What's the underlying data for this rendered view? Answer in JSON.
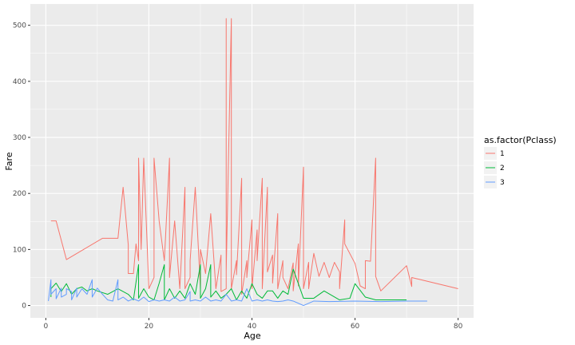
{
  "chart_data": {
    "type": "line",
    "title": "",
    "xlabel": "Age",
    "ylabel": "Fare",
    "xlim": [
      -3,
      83
    ],
    "ylim": [
      -22,
      538
    ],
    "x_ticks": [
      0,
      20,
      40,
      60,
      80
    ],
    "y_ticks": [
      0,
      100,
      200,
      300,
      400,
      500
    ],
    "grid": true,
    "background": "#ebebeb",
    "legend": {
      "title": "as.factor(Pclass)",
      "position": "right"
    },
    "series": [
      {
        "name": "1",
        "color": "#f8766d",
        "points": [
          [
            1,
            151
          ],
          [
            2,
            151
          ],
          [
            4,
            82
          ],
          [
            11,
            120
          ],
          [
            14,
            120
          ],
          [
            15,
            211
          ],
          [
            16,
            108
          ],
          [
            16,
            57
          ],
          [
            17,
            57
          ],
          [
            17.5,
            110
          ],
          [
            18,
            80
          ],
          [
            18,
            263
          ],
          [
            18.5,
            100
          ],
          [
            19,
            263
          ],
          [
            20,
            30
          ],
          [
            21,
            50
          ],
          [
            21,
            263
          ],
          [
            22,
            150
          ],
          [
            23,
            80
          ],
          [
            24,
            263
          ],
          [
            24,
            50
          ],
          [
            25,
            151
          ],
          [
            26,
            30
          ],
          [
            27,
            211
          ],
          [
            27,
            30
          ],
          [
            28,
            50
          ],
          [
            28,
            80
          ],
          [
            29,
            211
          ],
          [
            30,
            30
          ],
          [
            30,
            100
          ],
          [
            31,
            57
          ],
          [
            32,
            164
          ],
          [
            33,
            30
          ],
          [
            34,
            90
          ],
          [
            34,
            25
          ],
          [
            35,
            30
          ],
          [
            35,
            512
          ],
          [
            35,
            60
          ],
          [
            36,
            512
          ],
          [
            36,
            30
          ],
          [
            37,
            80
          ],
          [
            37,
            55
          ],
          [
            38,
            227
          ],
          [
            38,
            20
          ],
          [
            39,
            80
          ],
          [
            39,
            50
          ],
          [
            40,
            153
          ],
          [
            40,
            30
          ],
          [
            41,
            135
          ],
          [
            41,
            80
          ],
          [
            42,
            227
          ],
          [
            42,
            30
          ],
          [
            43,
            211
          ],
          [
            43,
            60
          ],
          [
            44,
            90
          ],
          [
            44,
            40
          ],
          [
            45,
            164
          ],
          [
            45,
            30
          ],
          [
            46,
            80
          ],
          [
            46,
            50
          ],
          [
            47,
            30
          ],
          [
            48,
            76
          ],
          [
            48,
            26
          ],
          [
            49,
            110
          ],
          [
            49,
            35
          ],
          [
            50,
            247
          ],
          [
            50,
            30
          ],
          [
            51,
            77
          ],
          [
            51,
            30
          ],
          [
            52,
            93
          ],
          [
            53,
            52
          ],
          [
            54,
            77
          ],
          [
            55,
            50
          ],
          [
            56,
            77
          ],
          [
            57,
            60
          ],
          [
            57,
            30
          ],
          [
            58,
            153
          ],
          [
            58,
            110
          ],
          [
            60,
            75
          ],
          [
            61,
            35
          ],
          [
            62,
            30
          ],
          [
            62,
            80
          ],
          [
            63,
            79
          ],
          [
            64,
            263
          ],
          [
            64,
            52
          ],
          [
            65,
            26
          ],
          [
            70,
            71
          ],
          [
            71,
            34
          ],
          [
            71,
            50
          ],
          [
            80,
            30
          ]
        ]
      },
      {
        "name": "2",
        "color": "#00ba38",
        "points": [
          [
            1,
            15
          ],
          [
            1,
            30
          ],
          [
            2,
            40
          ],
          [
            3,
            25
          ],
          [
            4,
            39
          ],
          [
            5,
            20
          ],
          [
            6,
            30
          ],
          [
            7,
            33
          ],
          [
            8,
            26
          ],
          [
            9,
            30
          ],
          [
            10,
            26
          ],
          [
            12,
            20
          ],
          [
            14,
            30
          ],
          [
            15,
            25
          ],
          [
            16,
            20
          ],
          [
            17,
            10
          ],
          [
            18,
            73
          ],
          [
            18,
            13
          ],
          [
            19,
            30
          ],
          [
            20,
            15
          ],
          [
            21,
            10
          ],
          [
            22,
            40
          ],
          [
            23,
            73
          ],
          [
            23,
            10
          ],
          [
            24,
            30
          ],
          [
            25,
            13
          ],
          [
            26,
            26
          ],
          [
            27,
            13
          ],
          [
            28,
            39
          ],
          [
            29,
            20
          ],
          [
            30,
            73
          ],
          [
            30,
            13
          ],
          [
            31,
            30
          ],
          [
            32,
            73
          ],
          [
            32,
            15
          ],
          [
            33,
            26
          ],
          [
            34,
            13
          ],
          [
            35,
            20
          ],
          [
            36,
            30
          ],
          [
            37,
            10
          ],
          [
            38,
            26
          ],
          [
            39,
            13
          ],
          [
            40,
            39
          ],
          [
            41,
            20
          ],
          [
            42,
            13
          ],
          [
            43,
            26
          ],
          [
            44,
            26
          ],
          [
            45,
            13
          ],
          [
            46,
            26
          ],
          [
            47,
            20
          ],
          [
            48,
            65
          ],
          [
            50,
            13
          ],
          [
            52,
            13
          ],
          [
            54,
            26
          ],
          [
            57,
            10
          ],
          [
            59,
            13
          ],
          [
            60,
            39
          ],
          [
            62,
            15
          ],
          [
            64,
            10
          ],
          [
            70,
            10
          ]
        ]
      },
      {
        "name": "3",
        "color": "#619cff",
        "points": [
          [
            0.5,
            8
          ],
          [
            1,
            46
          ],
          [
            1,
            20
          ],
          [
            2,
            30
          ],
          [
            2,
            12
          ],
          [
            3,
            31
          ],
          [
            3,
            15
          ],
          [
            4,
            20
          ],
          [
            4,
            30
          ],
          [
            5,
            25
          ],
          [
            5,
            10
          ],
          [
            6,
            31
          ],
          [
            6,
            15
          ],
          [
            7,
            30
          ],
          [
            8,
            20
          ],
          [
            9,
            46
          ],
          [
            9,
            15
          ],
          [
            10,
            31
          ],
          [
            11,
            20
          ],
          [
            12,
            10
          ],
          [
            13,
            8
          ],
          [
            14,
            46
          ],
          [
            14,
            10
          ],
          [
            15,
            15
          ],
          [
            16,
            8
          ],
          [
            17,
            12
          ],
          [
            18,
            8
          ],
          [
            19,
            15
          ],
          [
            20,
            7
          ],
          [
            21,
            10
          ],
          [
            22,
            8
          ],
          [
            23,
            10
          ],
          [
            24,
            8
          ],
          [
            25,
            15
          ],
          [
            26,
            8
          ],
          [
            27,
            10
          ],
          [
            28,
            25
          ],
          [
            28,
            8
          ],
          [
            29,
            10
          ],
          [
            30,
            8
          ],
          [
            31,
            15
          ],
          [
            32,
            8
          ],
          [
            33,
            10
          ],
          [
            34,
            8
          ],
          [
            35,
            20
          ],
          [
            36,
            8
          ],
          [
            37,
            10
          ],
          [
            38,
            8
          ],
          [
            39,
            30
          ],
          [
            40,
            8
          ],
          [
            41,
            10
          ],
          [
            42,
            8
          ],
          [
            43,
            10
          ],
          [
            44,
            8
          ],
          [
            45,
            7
          ],
          [
            46,
            8
          ],
          [
            47,
            10
          ],
          [
            48,
            8
          ],
          [
            50,
            0
          ],
          [
            52,
            8
          ],
          [
            55,
            7
          ],
          [
            60,
            8
          ],
          [
            65,
            7
          ],
          [
            70,
            8
          ],
          [
            74,
            8
          ]
        ]
      }
    ]
  }
}
